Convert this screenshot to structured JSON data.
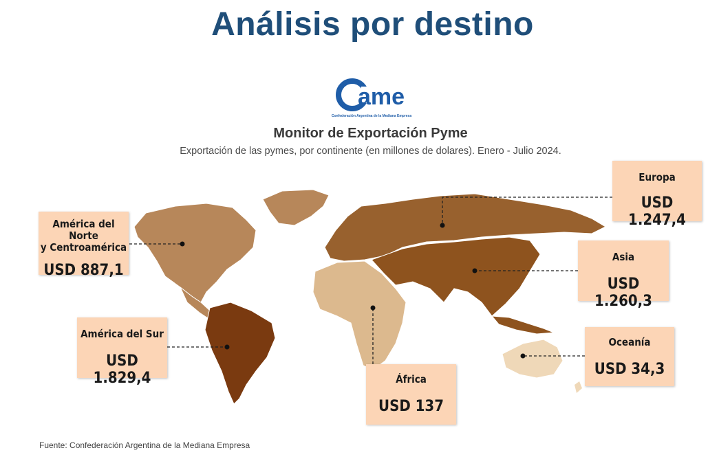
{
  "page": {
    "title": "Análisis por destino",
    "footer": "Fuente: Confederación Argentina de la Mediana Empresa"
  },
  "logo": {
    "mark": "ame",
    "caption": "Confederación Argentina de la Mediana Empresa"
  },
  "chart": {
    "title": "Monitor de Exportación Pyme",
    "subtitle": "Exportación de las pymes, por continente (en millones de dolares). Enero - Julio 2024."
  },
  "chart_data": {
    "type": "choropleth",
    "title": "Monitor de Exportación Pyme",
    "subtitle": "Exportación de las pymes, por continente (en millones de dolares). Enero - Julio 2024.",
    "categories": [
      "América del Norte y Centroamérica",
      "América del Sur",
      "Europa",
      "Asia",
      "África",
      "Oceanía"
    ],
    "values": [
      887.1,
      1829.4,
      1247.4,
      1260.3,
      137,
      34.3
    ]
  },
  "regions": [
    {
      "id": "north-america",
      "name": "América del Norte\ny Centroamérica",
      "value": "USD 887,1",
      "color": "#b7875a"
    },
    {
      "id": "south-america",
      "name": "América del Sur",
      "value": "USD 1.829,4",
      "color": "#7a3a10"
    },
    {
      "id": "europe",
      "name": "Europa",
      "value": "USD 1.247,4",
      "color": "#98612e"
    },
    {
      "id": "asia",
      "name": "Asia",
      "value": "USD 1.260,3",
      "color": "#8e531e"
    },
    {
      "id": "africa",
      "name": "África",
      "value": "USD 137",
      "color": "#dcb98e"
    },
    {
      "id": "oceania",
      "name": "Oceanía",
      "value": "USD 34,3",
      "color": "#efd8b8"
    }
  ],
  "colors": {
    "title": "#1f4e79",
    "card_background": "#fcd5b6",
    "logo_blue": "#1f5da8"
  }
}
